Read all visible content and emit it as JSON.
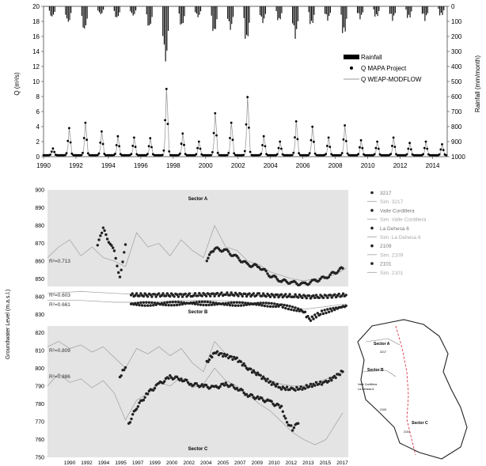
{
  "chart_data": [
    {
      "type": "bar+line+scatter",
      "title": "",
      "ylabel": "Q (m³/s)",
      "y2label": "Rainfall (mm/month)",
      "xlim": [
        1990,
        2014.9
      ],
      "ylim": [
        0,
        20
      ],
      "y2lim_inverted": [
        0,
        1000
      ],
      "x_ticks": [
        "1990",
        "1992",
        "1994",
        "1996",
        "1998",
        "2000",
        "2002",
        "2004",
        "2006",
        "2008",
        "2010",
        "2012",
        "2014"
      ],
      "y_ticks": [
        "0",
        "2",
        "4",
        "6",
        "8",
        "10",
        "12",
        "14",
        "16",
        "18",
        "20"
      ],
      "y2_ticks": [
        "0",
        "100",
        "200",
        "300",
        "400",
        "500",
        "600",
        "700",
        "800",
        "900",
        "1000"
      ],
      "legend": [
        "Rainfall",
        "Q MAPA Project",
        "Q WEAP-MODFLOW"
      ],
      "legend_position": "right",
      "peaks": [
        {
          "x": 1991.0,
          "q": 4.0,
          "rain": 120
        },
        {
          "x": 1992.0,
          "q": 4.8,
          "rain": 180
        },
        {
          "x": 1993.0,
          "q": 3.5,
          "rain": 60
        },
        {
          "x": 1994.0,
          "q": 2.8,
          "rain": 90
        },
        {
          "x": 1995.0,
          "q": 2.6,
          "rain": 70
        },
        {
          "x": 1996.0,
          "q": 2.5,
          "rain": 160
        },
        {
          "x": 1997.0,
          "q": 9.8,
          "rain": 410
        },
        {
          "x": 1998.0,
          "q": 3.2,
          "rain": 150
        },
        {
          "x": 1999.0,
          "q": 2.0,
          "rain": 80
        },
        {
          "x": 2000.0,
          "q": 6.2,
          "rain": 200
        },
        {
          "x": 2001.0,
          "q": 4.8,
          "rain": 170
        },
        {
          "x": 2002.0,
          "q": 8.6,
          "rain": 260
        },
        {
          "x": 2003.0,
          "q": 2.8,
          "rain": 120
        },
        {
          "x": 2004.0,
          "q": 2.0,
          "rain": 110
        },
        {
          "x": 2005.0,
          "q": 5.0,
          "rain": 230
        },
        {
          "x": 2006.0,
          "q": 4.2,
          "rain": 140
        },
        {
          "x": 2007.0,
          "q": 2.6,
          "rain": 100
        },
        {
          "x": 2008.0,
          "q": 4.4,
          "rain": 210
        },
        {
          "x": 2009.0,
          "q": 2.2,
          "rain": 90
        },
        {
          "x": 2010.0,
          "q": 2.0,
          "rain": 80
        },
        {
          "x": 2011.0,
          "q": 2.6,
          "rain": 100
        },
        {
          "x": 2012.0,
          "q": 1.8,
          "rain": 90
        },
        {
          "x": 2013.0,
          "q": 2.0,
          "rain": 100
        },
        {
          "x": 2014.0,
          "q": 1.6,
          "rain": 70
        }
      ]
    },
    {
      "type": "scatter+line",
      "ylabel": "Groundwater Level (m.a.s.l.)",
      "xlim": [
        1990,
        2017
      ],
      "ylim": [
        750,
        900
      ],
      "x_ticks": [
        "1990",
        "1992",
        "1994",
        "1995",
        "1997",
        "1999",
        "2000",
        "2002",
        "2004",
        "2005",
        "2007",
        "2009",
        "2010",
        "2012",
        "2013",
        "2015",
        "2017"
      ],
      "y_ticks": [
        "750",
        "760",
        "770",
        "780",
        "790",
        "800",
        "810",
        "820",
        "830",
        "840",
        "850",
        "860",
        "870",
        "880",
        "890",
        "900"
      ],
      "sector_labels": {
        "a": "Sector A",
        "b": "Sector B",
        "c": "Sector C"
      },
      "r2_labels": [
        "R²=0.713",
        "R²=0.603",
        "R²=0.661",
        "R²=0.809",
        "R²=0.886"
      ],
      "legend": [
        "3217",
        "Sim. 3217",
        "Valle Cordillera",
        "Sim. Valle Cordillera",
        "La Dehesa 6",
        "Sim. La Dehesa 6",
        "2109",
        "Sim. 2109",
        "2101",
        "Sim. 2101"
      ],
      "series": [
        {
          "name": "3217",
          "obs": [
            [
              1994.5,
              869
            ],
            [
              1995,
              878
            ],
            [
              1996,
              865
            ],
            [
              1996.5,
              851
            ],
            [
              1997,
              870
            ],
            [
              2004.3,
              861
            ],
            [
              2005,
              867
            ],
            [
              2006,
              866
            ],
            [
              2007,
              862
            ],
            [
              2008,
              858
            ],
            [
              2009,
              857
            ],
            [
              2010,
              852
            ],
            [
              2011,
              849
            ],
            [
              2012,
              848
            ],
            [
              2013,
              847
            ],
            [
              2014,
              849
            ],
            [
              2015,
              851
            ],
            [
              2016.5,
              856
            ]
          ],
          "sim": [
            [
              1990,
              862
            ],
            [
              1991,
              868
            ],
            [
              1992,
              872
            ],
            [
              1993,
              863
            ],
            [
              1994,
              868
            ],
            [
              1995,
              862
            ],
            [
              1996,
              860
            ],
            [
              1997,
              857
            ],
            [
              1998,
              876
            ],
            [
              1999,
              868
            ],
            [
              2000,
              870
            ],
            [
              2001,
              863
            ],
            [
              2002,
              872
            ],
            [
              2003,
              866
            ],
            [
              2004,
              862
            ],
            [
              2005,
              880
            ],
            [
              2006,
              868
            ],
            [
              2007,
              866
            ],
            [
              2008,
              860
            ],
            [
              2009,
              858
            ],
            [
              2010,
              854
            ],
            [
              2011,
              852
            ],
            [
              2012,
              850
            ],
            [
              2013,
              849
            ],
            [
              2014,
              850
            ],
            [
              2015,
              851
            ],
            [
              2016,
              853
            ],
            [
              2016.8,
              856
            ]
          ]
        },
        {
          "name": "Valle Cordillera",
          "obs": [
            [
              1997.5,
              841
            ],
            [
              2000,
              841
            ],
            [
              2003,
              841
            ],
            [
              2006,
              841.5
            ],
            [
              2009,
              841
            ],
            [
              2012,
              840.5
            ],
            [
              2014,
              840
            ],
            [
              2016.8,
              841
            ]
          ],
          "sim": [
            [
              1990,
              842
            ],
            [
              1993,
              843
            ],
            [
              1996,
              842
            ],
            [
              1999,
              841
            ],
            [
              2002,
              842
            ],
            [
              2005,
              842
            ],
            [
              2008,
              841
            ],
            [
              2011,
              840
            ],
            [
              2014,
              839
            ],
            [
              2016.8,
              840
            ]
          ]
        },
        {
          "name": "La Dehesa 6",
          "obs": [
            [
              1997.5,
              836
            ],
            [
              2000,
              836
            ],
            [
              2003,
              836.5
            ],
            [
              2006,
              836
            ],
            [
              2009,
              836
            ],
            [
              2011,
              835
            ],
            [
              2013,
              832
            ],
            [
              2013.5,
              827
            ],
            [
              2014.5,
              831
            ],
            [
              2016.8,
              835
            ]
          ],
          "sim": [
            [
              1990,
              838
            ],
            [
              1993,
              838
            ],
            [
              1996,
              837
            ],
            [
              1999,
              837
            ],
            [
              2002,
              838
            ],
            [
              2005,
              838
            ],
            [
              2008,
              837
            ],
            [
              2011,
              836
            ],
            [
              2013,
              833
            ],
            [
              2016.8,
              836
            ]
          ]
        },
        {
          "name": "2109",
          "obs": [
            [
              1996.5,
              795
            ],
            [
              1997,
              801
            ],
            [
              2004.3,
              803
            ],
            [
              2005,
              809
            ],
            [
              2006,
              807
            ],
            [
              2007,
              805
            ],
            [
              2008,
              800
            ],
            [
              2009,
              796
            ],
            [
              2010,
              792
            ],
            [
              2011,
              789
            ],
            [
              2012,
              788
            ],
            [
              2013,
              789
            ],
            [
              2014,
              791
            ],
            [
              2015,
              792
            ],
            [
              2016.5,
              798
            ]
          ],
          "sim": [
            [
              1990,
              812
            ],
            [
              1991,
              815
            ],
            [
              1992,
              811
            ],
            [
              1993,
              813
            ],
            [
              1994,
              809
            ],
            [
              1995,
              812
            ],
            [
              1996,
              806
            ],
            [
              1997,
              800
            ],
            [
              1998,
              811
            ],
            [
              1999,
              808
            ],
            [
              2000,
              812
            ],
            [
              2001,
              807
            ],
            [
              2002,
              811
            ],
            [
              2003,
              803
            ],
            [
              2004,
              798
            ],
            [
              2005,
              815
            ],
            [
              2006,
              808
            ],
            [
              2007,
              806
            ],
            [
              2008,
              800
            ],
            [
              2009,
              796
            ],
            [
              2010,
              793
            ],
            [
              2011,
              791
            ],
            [
              2012,
              790
            ],
            [
              2013,
              790
            ],
            [
              2014,
              792
            ],
            [
              2015,
              794
            ],
            [
              2016.5,
              797
            ]
          ]
        },
        {
          "name": "2101",
          "obs": [
            [
              1997.3,
              769
            ],
            [
              1998,
              778
            ],
            [
              1999,
              786
            ],
            [
              2000,
              791
            ],
            [
              2001,
              795
            ],
            [
              2002,
              794
            ],
            [
              2003,
              791
            ],
            [
              2004,
              790
            ],
            [
              2005,
              789
            ],
            [
              2006,
              791
            ],
            [
              2007,
              789
            ],
            [
              2008,
              785
            ],
            [
              2009,
              783
            ],
            [
              2010,
              781
            ],
            [
              2011,
              778
            ],
            [
              2011.5,
              770
            ],
            [
              2012,
              766
            ],
            [
              2012.5,
              769
            ]
          ],
          "sim": [
            [
              1990,
              790
            ],
            [
              1991,
              797
            ],
            [
              1992,
              792
            ],
            [
              1993,
              794
            ],
            [
              1994,
              789
            ],
            [
              1995,
              793
            ],
            [
              1996,
              786
            ],
            [
              1997,
              771
            ],
            [
              1998,
              782
            ],
            [
              1999,
              786
            ],
            [
              2000,
              792
            ],
            [
              2001,
              790
            ],
            [
              2002,
              795
            ],
            [
              2003,
              789
            ],
            [
              2004,
              791
            ],
            [
              2005,
              800
            ],
            [
              2006,
              793
            ],
            [
              2007,
              790
            ],
            [
              2008,
              785
            ],
            [
              2009,
              780
            ],
            [
              2010,
              776
            ],
            [
              2011,
              770
            ],
            [
              2012,
              764
            ],
            [
              2013,
              760
            ],
            [
              2014,
              757
            ],
            [
              2015,
              760
            ],
            [
              2016.5,
              775
            ]
          ]
        }
      ]
    }
  ],
  "map": {
    "labels": [
      "Sector A",
      "3217",
      "Sector B",
      "Valle Cordillera",
      "La Dehesa 6",
      "2109",
      "Sector C",
      "2101"
    ]
  }
}
